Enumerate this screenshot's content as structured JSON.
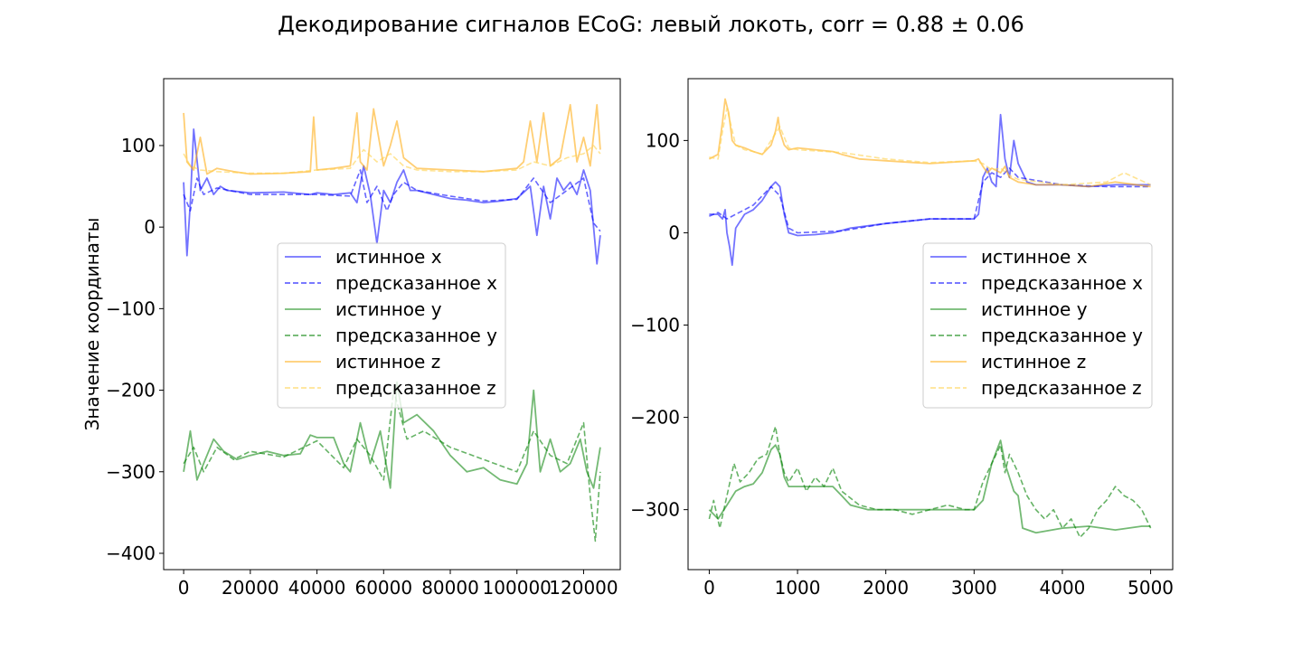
{
  "figure": {
    "title": "Декодирование сигналов ECoG: левый локоть, corr = 0.88 ± 0.06"
  },
  "colors": {
    "x": "#0000ff",
    "y": "#008000",
    "z": "#ffa500",
    "z_pred": "#ffd24d"
  },
  "chart_data": [
    {
      "type": "line",
      "ylabel": "Значение координаты",
      "xlabel": "",
      "xlim": [
        -6000,
        131000
      ],
      "ylim": [
        -420,
        182
      ],
      "xticks": [
        0,
        20000,
        40000,
        60000,
        80000,
        100000,
        120000
      ],
      "xtick_labels": [
        "0",
        "20000",
        "40000",
        "60000",
        "80000",
        "100000",
        "120000"
      ],
      "yticks": [
        100,
        0,
        -100,
        -200,
        -300,
        -400
      ],
      "ytick_labels": [
        "100",
        "0",
        "−100",
        "−200",
        "−300",
        "−400"
      ],
      "legend": "center-right",
      "series": [
        {
          "name": "истинное x",
          "key": "x",
          "style": "solid",
          "x": [
            0,
            1000,
            2000,
            3000,
            5000,
            7000,
            9000,
            11000,
            13000,
            20000,
            30000,
            38000,
            40000,
            45000,
            50000,
            52000,
            54000,
            56000,
            58000,
            60000,
            62000,
            64000,
            66000,
            68000,
            70000,
            75000,
            80000,
            85000,
            90000,
            95000,
            100000,
            104000,
            106000,
            108000,
            110000,
            112000,
            114000,
            116000,
            118000,
            120000,
            122000,
            124000,
            125000
          ],
          "y": [
            55,
            -35,
            30,
            120,
            45,
            60,
            40,
            50,
            45,
            42,
            43,
            40,
            42,
            40,
            42,
            30,
            75,
            40,
            -20,
            45,
            30,
            55,
            70,
            45,
            45,
            40,
            35,
            33,
            30,
            32,
            35,
            50,
            -10,
            50,
            10,
            60,
            45,
            55,
            40,
            70,
            45,
            -45,
            -10
          ]
        },
        {
          "name": "предсказанное x",
          "key": "x",
          "style": "dashed",
          "x": [
            0,
            2000,
            4000,
            6000,
            10000,
            20000,
            30000,
            40000,
            50000,
            53000,
            55000,
            58000,
            61000,
            63000,
            66000,
            70000,
            80000,
            90000,
            100000,
            105000,
            110000,
            115000,
            120000,
            123000,
            125000
          ],
          "y": [
            40,
            20,
            60,
            40,
            48,
            40,
            40,
            40,
            38,
            70,
            30,
            50,
            20,
            40,
            55,
            45,
            38,
            32,
            34,
            60,
            30,
            45,
            60,
            5,
            -5
          ]
        },
        {
          "name": "истинное y",
          "key": "y",
          "style": "solid",
          "x": [
            0,
            2000,
            4000,
            6000,
            9000,
            12000,
            16000,
            20000,
            25000,
            30000,
            35000,
            38000,
            40000,
            45000,
            48000,
            50000,
            53000,
            56000,
            59000,
            62000,
            64000,
            66000,
            70000,
            75000,
            80000,
            85000,
            90000,
            95000,
            100000,
            103000,
            105000,
            107000,
            110000,
            113000,
            116000,
            119000,
            121000,
            123000,
            125000
          ],
          "y": [
            -300,
            -250,
            -310,
            -290,
            -260,
            -275,
            -285,
            -280,
            -275,
            -280,
            -278,
            -255,
            -258,
            -258,
            -290,
            -300,
            -240,
            -290,
            -250,
            -320,
            -190,
            -240,
            -230,
            -250,
            -280,
            -300,
            -295,
            -310,
            -315,
            -290,
            -200,
            -300,
            -260,
            -300,
            -290,
            -260,
            -300,
            -320,
            -270
          ]
        },
        {
          "name": "предсказанное y",
          "key": "y",
          "style": "dashed",
          "x": [
            0,
            3000,
            6000,
            10000,
            15000,
            20000,
            30000,
            40000,
            48000,
            52000,
            56000,
            60000,
            63000,
            67000,
            72000,
            80000,
            90000,
            100000,
            105000,
            110000,
            115000,
            120000,
            122000,
            123500,
            125000
          ],
          "y": [
            -290,
            -270,
            -300,
            -270,
            -285,
            -275,
            -282,
            -262,
            -295,
            -260,
            -280,
            -310,
            -200,
            -260,
            -250,
            -270,
            -285,
            -300,
            -250,
            -280,
            -290,
            -240,
            -330,
            -385,
            -300
          ]
        },
        {
          "name": "истинное z",
          "key": "z",
          "style": "solid",
          "x": [
            0,
            1000,
            3000,
            5000,
            7000,
            10000,
            15000,
            20000,
            30000,
            38000,
            39000,
            40000,
            45000,
            50000,
            52000,
            53000,
            55000,
            57000,
            60000,
            62000,
            64000,
            66000,
            70000,
            80000,
            90000,
            100000,
            102000,
            104000,
            106000,
            108000,
            110000,
            113000,
            116000,
            118000,
            120000,
            122000,
            124000,
            125000
          ],
          "y": [
            140,
            80,
            70,
            110,
            65,
            72,
            68,
            65,
            66,
            68,
            135,
            70,
            72,
            75,
            140,
            80,
            70,
            145,
            75,
            100,
            130,
            85,
            72,
            70,
            68,
            72,
            80,
            130,
            80,
            140,
            75,
            85,
            150,
            80,
            110,
            75,
            150,
            95
          ]
        },
        {
          "name": "предсказанное z",
          "key": "z_pred",
          "style": "dashed",
          "x": [
            0,
            2000,
            5000,
            10000,
            20000,
            30000,
            40000,
            50000,
            54000,
            58000,
            62000,
            66000,
            70000,
            80000,
            90000,
            100000,
            105000,
            110000,
            115000,
            120000,
            123000,
            125000
          ],
          "y": [
            90,
            75,
            70,
            68,
            66,
            66,
            70,
            72,
            95,
            80,
            90,
            75,
            70,
            68,
            68,
            70,
            80,
            75,
            85,
            90,
            100,
            90
          ]
        }
      ]
    },
    {
      "type": "line",
      "ylabel": "",
      "xlabel": "",
      "xlim": [
        -240,
        5250
      ],
      "ylim": [
        -365,
        167
      ],
      "xticks": [
        0,
        1000,
        2000,
        3000,
        4000,
        5000
      ],
      "xtick_labels": [
        "0",
        "1000",
        "2000",
        "3000",
        "4000",
        "5000"
      ],
      "yticks": [
        100,
        0,
        -100,
        -200,
        -300
      ],
      "ytick_labels": [
        "100",
        "0",
        "−100",
        "−200",
        "−300"
      ],
      "legend": "center-right",
      "series": [
        {
          "name": "истинное x",
          "key": "x",
          "style": "solid",
          "x": [
            0,
            100,
            150,
            180,
            200,
            230,
            260,
            300,
            400,
            500,
            600,
            700,
            750,
            800,
            850,
            900,
            1000,
            1200,
            1400,
            1600,
            2000,
            2500,
            3000,
            3050,
            3100,
            3150,
            3200,
            3250,
            3300,
            3350,
            3400,
            3450,
            3500,
            3600,
            3700,
            4000,
            4300,
            4600,
            5000
          ],
          "y": [
            20,
            20,
            15,
            25,
            0,
            -15,
            -35,
            5,
            20,
            25,
            35,
            50,
            55,
            50,
            20,
            0,
            -3,
            -2,
            0,
            5,
            10,
            15,
            15,
            20,
            60,
            70,
            55,
            50,
            128,
            80,
            60,
            100,
            75,
            55,
            52,
            52,
            50,
            52,
            52
          ]
        },
        {
          "name": "предсказанное x",
          "key": "x",
          "style": "dashed",
          "x": [
            0,
            100,
            200,
            300,
            400,
            500,
            600,
            700,
            800,
            900,
            1000,
            1500,
            2000,
            2500,
            3000,
            3100,
            3200,
            3300,
            3400,
            3500,
            4000,
            4500,
            5000
          ],
          "y": [
            18,
            22,
            15,
            20,
            25,
            30,
            40,
            50,
            40,
            5,
            0,
            2,
            10,
            15,
            15,
            55,
            65,
            60,
            70,
            60,
            52,
            50,
            50
          ]
        },
        {
          "name": "истинное y",
          "key": "y",
          "style": "solid",
          "x": [
            0,
            100,
            200,
            300,
            400,
            500,
            600,
            700,
            750,
            800,
            850,
            900,
            1000,
            1200,
            1400,
            1500,
            1600,
            1800,
            2000,
            2500,
            3000,
            3100,
            3200,
            3300,
            3350,
            3400,
            3450,
            3500,
            3550,
            3700,
            4000,
            4300,
            4600,
            4900,
            5000
          ],
          "y": [
            -300,
            -310,
            -295,
            -280,
            -275,
            -272,
            -260,
            -235,
            -230,
            -240,
            -265,
            -275,
            -275,
            -275,
            -275,
            -285,
            -295,
            -300,
            -300,
            -300,
            -300,
            -290,
            -250,
            -225,
            -250,
            -265,
            -280,
            -285,
            -320,
            -325,
            -320,
            -318,
            -322,
            -318,
            -318
          ]
        },
        {
          "name": "предсказанное y",
          "key": "y",
          "style": "dashed",
          "x": [
            0,
            50,
            120,
            200,
            280,
            350,
            450,
            550,
            650,
            750,
            800,
            850,
            900,
            1000,
            1100,
            1200,
            1300,
            1400,
            1500,
            1700,
            1900,
            2100,
            2300,
            2500,
            2700,
            2900,
            3000,
            3100,
            3200,
            3300,
            3350,
            3400,
            3500,
            3600,
            3700,
            3800,
            3900,
            4000,
            4100,
            4200,
            4300,
            4400,
            4500,
            4600,
            4700,
            4800,
            4900,
            5000
          ],
          "y": [
            -310,
            -290,
            -320,
            -285,
            -250,
            -270,
            -260,
            -245,
            -240,
            -210,
            -240,
            -260,
            -270,
            -255,
            -280,
            -265,
            -275,
            -255,
            -280,
            -295,
            -300,
            -300,
            -305,
            -300,
            -295,
            -300,
            -300,
            -270,
            -250,
            -230,
            -260,
            -240,
            -260,
            -285,
            -300,
            -310,
            -300,
            -320,
            -310,
            -330,
            -320,
            -300,
            -290,
            -275,
            -285,
            -290,
            -300,
            -320
          ]
        },
        {
          "name": "истинное z",
          "key": "z",
          "style": "solid",
          "x": [
            0,
            100,
            150,
            180,
            220,
            260,
            300,
            400,
            500,
            600,
            700,
            750,
            780,
            800,
            850,
            900,
            1000,
            1200,
            1400,
            1500,
            1700,
            2000,
            2500,
            3000,
            3050,
            3100,
            3150,
            3200,
            3300,
            3350,
            3400,
            3500,
            3700,
            4000,
            4300,
            4600,
            5000
          ],
          "y": [
            80,
            85,
            120,
            145,
            130,
            100,
            95,
            92,
            88,
            85,
            95,
            110,
            125,
            110,
            95,
            90,
            92,
            90,
            88,
            85,
            80,
            78,
            75,
            78,
            80,
            72,
            65,
            70,
            65,
            72,
            60,
            55,
            52,
            52,
            50,
            55,
            50
          ]
        },
        {
          "name": "предсказанное z",
          "key": "z_pred",
          "style": "dashed",
          "x": [
            0,
            100,
            150,
            200,
            300,
            400,
            500,
            600,
            700,
            800,
            900,
            1000,
            1500,
            2000,
            2500,
            3000,
            3100,
            3200,
            3300,
            3400,
            3500,
            4000,
            4500,
            4700,
            5000
          ],
          "y": [
            82,
            80,
            110,
            135,
            95,
            90,
            88,
            85,
            100,
            115,
            92,
            90,
            87,
            80,
            76,
            78,
            75,
            68,
            70,
            62,
            58,
            52,
            55,
            65,
            52
          ]
        }
      ]
    }
  ]
}
